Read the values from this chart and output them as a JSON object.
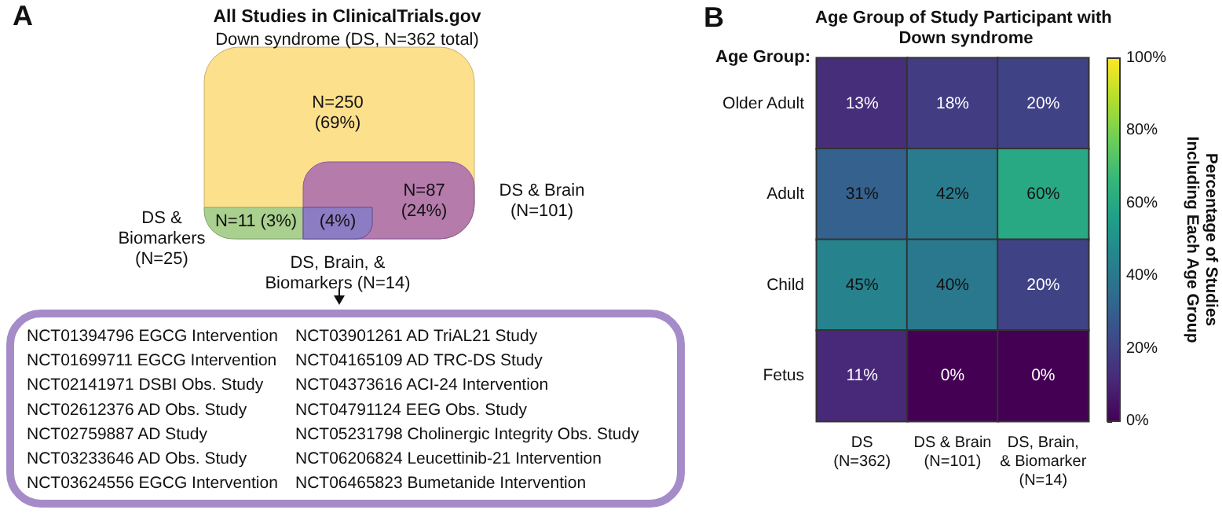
{
  "chart_data": [
    {
      "type": "other",
      "title": "All Studies in ClinicalTrials.gov",
      "subtitle": "Down syndrome (DS, N=362 total)",
      "annotations": [
        "A",
        "N=250\n(69%)",
        "N=87\n(24%)",
        "DS & Brain\n(N=101)",
        "N=11 (3%)",
        "(4%)",
        "DS &\nBiomarkers\n(N=25)",
        "DS, Brain, &\nBiomarkers (N=14)",
        "NCT01394796 EGCG Intervention",
        "NCT01699711 EGCG Intervention",
        "NCT02141971 DSBI Obs. Study",
        "NCT02612376 AD Obs. Study",
        "NCT02759887 AD Study",
        "NCT03233646 AD Obs. Study",
        "NCT03624556 EGCG Intervention",
        "NCT03901261 AD TriAL21 Study",
        "NCT04165109 AD TRC-DS Study",
        "NCT04373616 ACI-24 Intervention",
        "NCT04791124 EEG Obs. Study",
        "NCT05231798 Cholinergic Integrity Obs. Study",
        "NCT06206824 Leucettinib-21 Intervention",
        "NCT06465823 Bumetanide Intervention"
      ]
    },
    {
      "type": "heatmap",
      "title": "Age Group of Study Participant with Down syndrome",
      "ylabel": "Age Group:",
      "clabel": "Percentage of Studies\nIncluding Each Age Group",
      "annotations": [
        "B"
      ],
      "categories": [
        "DS\n(N=362)",
        "DS & Brain\n(N=101)",
        "DS, Brain,\n& Biomarker\n(N=14)"
      ],
      "y_categories": [
        "Older Adult",
        "Adult",
        "Child",
        "Fetus"
      ],
      "cells": [
        [
          13,
          18,
          20
        ],
        [
          31,
          42,
          60
        ],
        [
          45,
          40,
          20
        ],
        [
          11,
          0,
          0
        ]
      ],
      "cell_labels": [
        [
          "13%",
          "18%",
          "20%"
        ],
        [
          "31%",
          "42%",
          "60%"
        ],
        [
          "45%",
          "40%",
          "20%"
        ],
        [
          "11%",
          "0%",
          "0%"
        ]
      ],
      "clim": [
        0,
        100
      ],
      "cticks": [
        {
          "value": 0,
          "label": "0%"
        },
        {
          "value": 20,
          "label": "20%"
        },
        {
          "value": 40,
          "label": "40%"
        },
        {
          "value": 60,
          "label": "60%"
        },
        {
          "value": 80,
          "label": "80%"
        },
        {
          "value": 100,
          "label": "100%"
        }
      ]
    }
  ]
}
